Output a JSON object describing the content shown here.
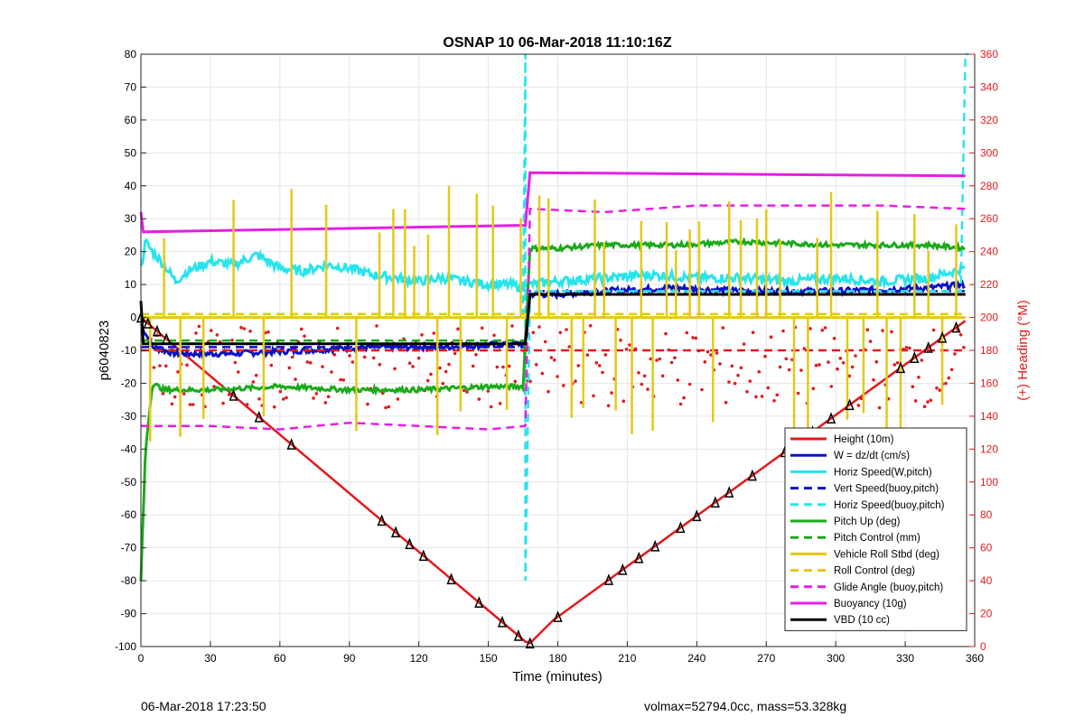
{
  "chart_data": {
    "type": "line",
    "title": "OSNAP 10 06-Mar-2018 11:10:16Z",
    "xlabel": "Time (minutes)",
    "ylabel": "p6040823",
    "y2label": "(+) Heading (°M)",
    "xlim": [
      0,
      360
    ],
    "ylim": [
      -100,
      80
    ],
    "y2lim": [
      0,
      360
    ],
    "xticks": [
      "0",
      "30",
      "60",
      "90",
      "120",
      "150",
      "180",
      "210",
      "240",
      "270",
      "300",
      "330",
      "360"
    ],
    "yticks": [
      "-100",
      "-90",
      "-80",
      "-70",
      "-60",
      "-50",
      "-40",
      "-30",
      "-20",
      "-10",
      "0",
      "10",
      "20",
      "30",
      "40",
      "50",
      "60",
      "70",
      "80"
    ],
    "y2ticks": [
      "0",
      "20",
      "40",
      "60",
      "80",
      "100",
      "120",
      "140",
      "160",
      "180",
      "200",
      "220",
      "240",
      "260",
      "280",
      "300",
      "320",
      "340",
      "360"
    ],
    "grid": true,
    "legend_position": "bottom-right",
    "colors": {
      "red": "#e31a1c",
      "blue": "#0a12c8",
      "cyan": "#28e4ec",
      "green": "#1aaa1a",
      "yellow": "#e4c81a",
      "magenta": "#e61ee6",
      "black": "#000000"
    },
    "legend": [
      {
        "name": "Height (10m)",
        "color": "#e31a1c",
        "dash": false
      },
      {
        "name": "W = dz/dt (cm/s)",
        "color": "#0a12c8",
        "dash": false
      },
      {
        "name": "Horiz Speed(W,pitch)",
        "color": "#28e4ec",
        "dash": false
      },
      {
        "name": "Vert Speed(buoy,pitch)",
        "color": "#0a12c8",
        "dash": true
      },
      {
        "name": "Horiz Speed(buoy,pitch)",
        "color": "#28e4ec",
        "dash": true
      },
      {
        "name": "Pitch Up (deg)",
        "color": "#1aaa1a",
        "dash": false
      },
      {
        "name": "Pitch Control (mm)",
        "color": "#1aaa1a",
        "dash": true
      },
      {
        "name": "Vehicle Roll Stbd (deg)",
        "color": "#e4c81a",
        "dash": false
      },
      {
        "name": "Roll Control (deg)",
        "color": "#e4c81a",
        "dash": true
      },
      {
        "name": "Glide Angle (buoy,pitch)",
        "color": "#e61ee6",
        "dash": true
      },
      {
        "name": "Buoyancy (10g)",
        "color": "#e61ee6",
        "dash": false
      },
      {
        "name": "VBD (10 cc)",
        "color": "#000000",
        "dash": false
      }
    ],
    "series": [
      {
        "name": "Height (10m)",
        "color": "#e31a1c",
        "dash": false,
        "x": [
          0,
          166,
          168,
          178,
          356
        ],
        "y": [
          0,
          -98.5,
          -99,
          -92,
          -1
        ]
      },
      {
        "name": "W = dz/dt (cm/s)",
        "color": "#0a12c8",
        "dash": false,
        "x": [
          0,
          5,
          15,
          40,
          70,
          100,
          130,
          160,
          166,
          168,
          180,
          200,
          230,
          260,
          300,
          340,
          356
        ],
        "y": [
          -2,
          -9,
          -11,
          -11,
          -10,
          -9,
          -9,
          -8,
          -8,
          7,
          7,
          8,
          9,
          8,
          8,
          9,
          10
        ]
      },
      {
        "name": "Horiz Speed(W,pitch)",
        "color": "#28e4ec",
        "dash": false,
        "x": [
          0,
          2,
          5,
          10,
          15,
          20,
          30,
          40,
          50,
          60,
          70,
          80,
          90,
          100,
          110,
          120,
          130,
          140,
          150,
          160,
          165,
          168,
          180,
          200,
          220,
          240,
          260,
          280,
          300,
          320,
          340,
          356
        ],
        "y": [
          15,
          23,
          20,
          16,
          11,
          14,
          17,
          16,
          19,
          15,
          14,
          16,
          15,
          13,
          12,
          11,
          12,
          11,
          10,
          10,
          9,
          10,
          11,
          12,
          13,
          12,
          12,
          11,
          12,
          11,
          12,
          15
        ]
      },
      {
        "name": "Vert Speed(buoy,pitch)",
        "color": "#0a12c8",
        "dash": true,
        "x": [
          0,
          166,
          168,
          356
        ],
        "y": [
          -9,
          -9,
          8,
          8
        ]
      },
      {
        "name": "Horiz Speed(buoy,pitch)",
        "color": "#28e4ec",
        "dash": true,
        "x": [
          0,
          165,
          166,
          166,
          168,
          354,
          356,
          357
        ],
        "y": [
          1,
          1,
          80,
          -80,
          8,
          8,
          80,
          80
        ]
      },
      {
        "name": "Pitch Up (deg)",
        "color": "#1aaa1a",
        "dash": false,
        "x": [
          0,
          2,
          5,
          10,
          30,
          60,
          90,
          120,
          150,
          165,
          168,
          180,
          200,
          230,
          260,
          300,
          340,
          356
        ],
        "y": [
          -80,
          -40,
          -20,
          -22,
          -22,
          -21,
          -22,
          -22,
          -21,
          -21,
          21,
          21,
          22,
          22,
          23,
          22,
          22,
          21
        ]
      },
      {
        "name": "Pitch Control (mm)",
        "color": "#1aaa1a",
        "dash": true,
        "x": [
          0,
          166,
          168,
          356
        ],
        "y": [
          -7,
          -7,
          7,
          7
        ]
      },
      {
        "name": "Vehicle Roll Stbd (deg)",
        "color": "#e4c81a",
        "dash": false,
        "x": [
          0,
          15,
          30,
          60,
          90,
          120,
          150,
          166,
          168,
          200,
          240,
          280,
          320,
          356
        ],
        "y": [
          0,
          0,
          0,
          0,
          0,
          0,
          0,
          0,
          0,
          0,
          0,
          0,
          0,
          0
        ]
      },
      {
        "name": "Roll Control (deg)",
        "color": "#e4c81a",
        "dash": true,
        "x": [
          0,
          166,
          168,
          356
        ],
        "y": [
          1,
          1,
          1,
          1
        ]
      },
      {
        "name": "Glide Angle (buoy,pitch)",
        "color": "#e61ee6",
        "dash": true,
        "x": [
          0,
          30,
          60,
          90,
          120,
          150,
          166,
          168,
          200,
          240,
          280,
          320,
          356
        ],
        "y": [
          -33,
          -33,
          -34,
          -32,
          -33,
          -34,
          -33,
          33,
          32,
          34,
          34,
          34,
          33
        ]
      },
      {
        "name": "Buoyancy (10g)",
        "color": "#e61ee6",
        "dash": false,
        "x": [
          0,
          1,
          166,
          168,
          356
        ],
        "y": [
          32,
          26,
          28,
          44,
          43
        ]
      },
      {
        "name": "VBD (10 cc)",
        "color": "#000000",
        "dash": false,
        "x": [
          0,
          1,
          2,
          166,
          168,
          356
        ],
        "y": [
          5,
          -8,
          -8,
          -8,
          7,
          7
        ]
      },
      {
        "name": "Heading",
        "axis": "right",
        "color": "#e31a1c",
        "dash": true,
        "x": [
          0,
          166,
          168,
          356
        ],
        "y": [
          180,
          180,
          180,
          180
        ]
      }
    ],
    "annotations": [
      {
        "text": "06-Mar-2018 17:23:50"
      },
      {
        "text": "volmax=52794.0cc, mass=53.328kg"
      }
    ]
  }
}
